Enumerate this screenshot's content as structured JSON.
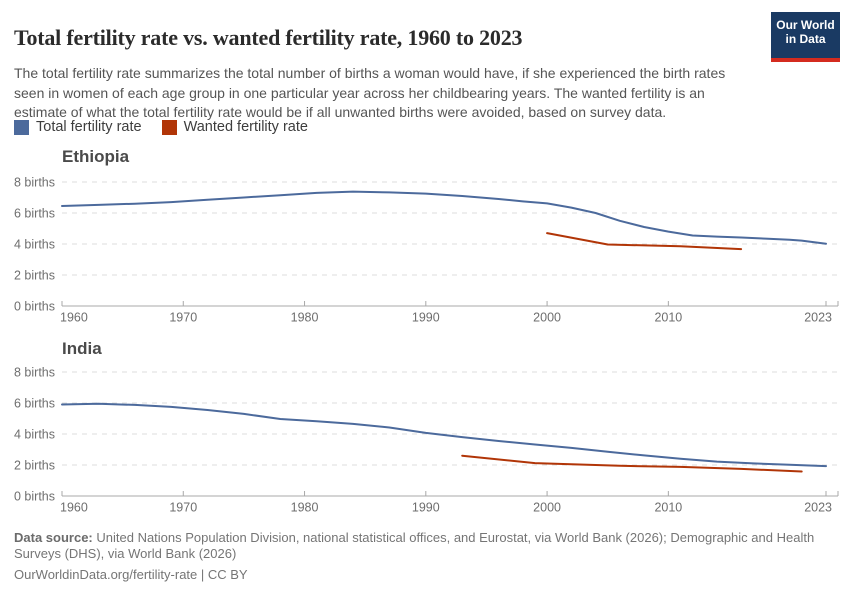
{
  "header": {
    "title": "Total fertility rate vs. wanted fertility rate, 1960 to 2023",
    "subtitle": "The total fertility rate summarizes the total number of births a woman would have, if she experienced the birth rates seen in women of each age group in one particular year across her childbearing years. The wanted fertility is an estimate of what the total fertility rate would be if all unwanted births were avoided, based on survey data.",
    "logo": {
      "text_line1": "Our World",
      "text_line2": "in Data",
      "bg_color": "#1A3A63",
      "bar_color": "#D42B1F"
    }
  },
  "legend": {
    "items": [
      {
        "label": "Total fertility rate",
        "color": "#4C6A9C"
      },
      {
        "label": "Wanted fertility rate",
        "color": "#B13507"
      }
    ]
  },
  "chart_data": [
    {
      "type": "line",
      "title": "Ethiopia",
      "xlabel": "",
      "ylabel": "",
      "xlim": [
        1960,
        2024
      ],
      "ylim": [
        0,
        8
      ],
      "grid": "dashed-horizontal",
      "legend_position": "top-left-shared",
      "x_ticks": [
        1960,
        1970,
        1980,
        1990,
        2000,
        2010,
        2023
      ],
      "x_tick_labels": [
        "1960",
        "1970",
        "1980",
        "1990",
        "2000",
        "2010",
        "2023"
      ],
      "y_ticks": [
        0,
        2,
        4,
        6,
        8
      ],
      "y_tick_labels": [
        "0 births",
        "2 births",
        "4 births",
        "6 births",
        "8 births"
      ],
      "series": [
        {
          "name": "Total fertility rate",
          "color": "#4C6A9C",
          "points": [
            [
              1960,
              6.45
            ],
            [
              1963,
              6.52
            ],
            [
              1966,
              6.6
            ],
            [
              1969,
              6.7
            ],
            [
              1972,
              6.85
            ],
            [
              1975,
              7.0
            ],
            [
              1978,
              7.15
            ],
            [
              1981,
              7.3
            ],
            [
              1984,
              7.38
            ],
            [
              1987,
              7.33
            ],
            [
              1990,
              7.25
            ],
            [
              1993,
              7.1
            ],
            [
              1996,
              6.9
            ],
            [
              1998,
              6.75
            ],
            [
              2000,
              6.62
            ],
            [
              2002,
              6.35
            ],
            [
              2004,
              6.0
            ],
            [
              2006,
              5.5
            ],
            [
              2008,
              5.1
            ],
            [
              2010,
              4.8
            ],
            [
              2012,
              4.55
            ],
            [
              2014,
              4.48
            ],
            [
              2016,
              4.42
            ],
            [
              2018,
              4.35
            ],
            [
              2020,
              4.28
            ],
            [
              2021,
              4.22
            ],
            [
              2023,
              4.02
            ]
          ]
        },
        {
          "name": "Wanted fertility rate",
          "color": "#B13507",
          "points": [
            [
              2000,
              4.7
            ],
            [
              2005,
              3.97
            ],
            [
              2011,
              3.85
            ],
            [
              2016,
              3.67
            ]
          ]
        }
      ]
    },
    {
      "type": "line",
      "title": "India",
      "xlabel": "",
      "ylabel": "",
      "xlim": [
        1960,
        2024
      ],
      "ylim": [
        0,
        8
      ],
      "grid": "dashed-horizontal",
      "legend_position": "top-left-shared",
      "x_ticks": [
        1960,
        1970,
        1980,
        1990,
        2000,
        2010,
        2023
      ],
      "x_tick_labels": [
        "1960",
        "1970",
        "1980",
        "1990",
        "2000",
        "2010",
        "2023"
      ],
      "y_ticks": [
        0,
        2,
        4,
        6,
        8
      ],
      "y_tick_labels": [
        "0 births",
        "2 births",
        "4 births",
        "6 births",
        "8 births"
      ],
      "series": [
        {
          "name": "Total fertility rate",
          "color": "#4C6A9C",
          "points": [
            [
              1960,
              5.9
            ],
            [
              1963,
              5.95
            ],
            [
              1966,
              5.88
            ],
            [
              1969,
              5.75
            ],
            [
              1972,
              5.55
            ],
            [
              1975,
              5.3
            ],
            [
              1978,
              4.97
            ],
            [
              1981,
              4.82
            ],
            [
              1984,
              4.65
            ],
            [
              1987,
              4.42
            ],
            [
              1990,
              4.07
            ],
            [
              1993,
              3.8
            ],
            [
              1996,
              3.55
            ],
            [
              1999,
              3.32
            ],
            [
              2002,
              3.1
            ],
            [
              2005,
              2.85
            ],
            [
              2008,
              2.62
            ],
            [
              2011,
              2.4
            ],
            [
              2014,
              2.22
            ],
            [
              2017,
              2.1
            ],
            [
              2020,
              2.02
            ],
            [
              2023,
              1.93
            ]
          ]
        },
        {
          "name": "Wanted fertility rate",
          "color": "#B13507",
          "points": [
            [
              1993,
              2.6
            ],
            [
              1999,
              2.12
            ],
            [
              2006,
              1.95
            ],
            [
              2011,
              1.88
            ],
            [
              2016,
              1.75
            ],
            [
              2021,
              1.58
            ]
          ]
        }
      ]
    }
  ],
  "footer": {
    "data_source_label": "Data source:",
    "data_source": "United Nations Population Division, national statistical offices, and Eurostat, via World Bank (2026); Demographic and Health Surveys (DHS), via World Bank (2026)",
    "link": "OurWorldinData.org/fertility-rate | CC BY"
  }
}
